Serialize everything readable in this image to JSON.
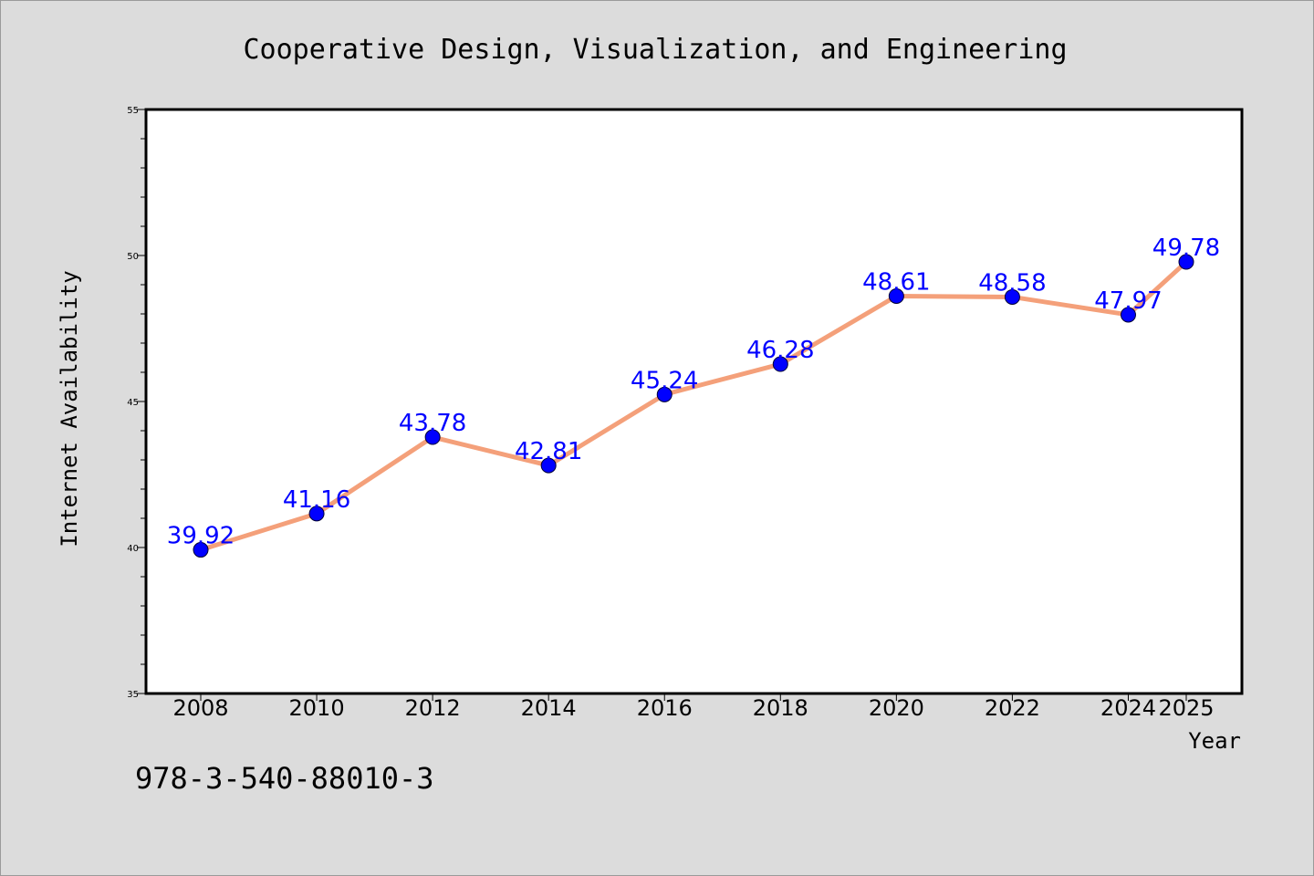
{
  "chart_data": {
    "type": "line",
    "title": "Cooperative Design, Visualization, and Engineering",
    "xlabel": "Year",
    "ylabel": "Internet Availability",
    "x": [
      "2008",
      "2010",
      "2012",
      "2014",
      "2016",
      "2018",
      "2020",
      "2022",
      "2024",
      "2025"
    ],
    "values": [
      39.92,
      41.16,
      43.78,
      42.81,
      45.24,
      46.28,
      48.61,
      48.58,
      47.97,
      49.78
    ],
    "data_labels": [
      "39.92",
      "41.16",
      "43.78",
      "42.81",
      "45.24",
      "46.28",
      "48.61",
      "48.58",
      "47.97",
      "49.78"
    ],
    "ylim": [
      35,
      55
    ],
    "yticks": [
      "35",
      "40",
      "45",
      "50",
      "55"
    ],
    "grid": false,
    "line_color": "#f4a07a",
    "marker_color": "#0000ff",
    "label_color": "#0000ff"
  },
  "footer": {
    "isbn": "978-3-540-88010-3"
  }
}
